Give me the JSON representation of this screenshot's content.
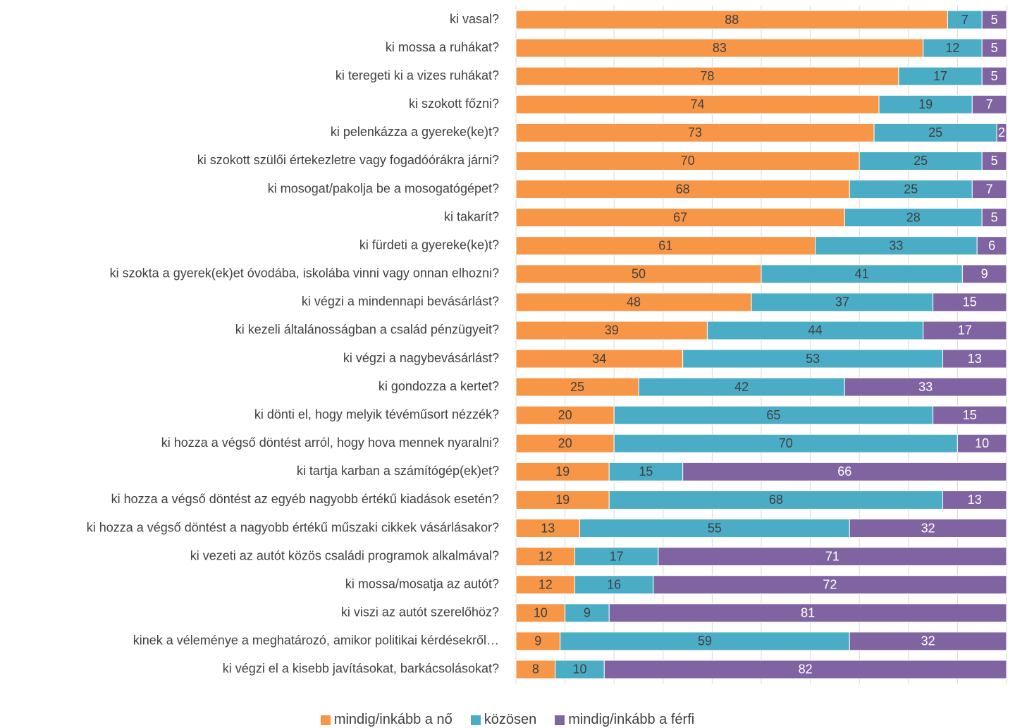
{
  "colors": {
    "nő": "#F79646",
    "közösen": "#4BACC6",
    "férfi": "#8064A2",
    "grid": "#D9D9D9",
    "text": "#404040"
  },
  "legend": [
    {
      "label": "mindig/inkább a nő",
      "color": "#F79646"
    },
    {
      "label": "közösen",
      "color": "#4BACC6"
    },
    {
      "label": "mindig/inkább a férfi",
      "color": "#8064A2"
    }
  ],
  "chart_data": {
    "type": "bar",
    "orientation": "horizontal",
    "stacked": "100%",
    "xlim": [
      0,
      100
    ],
    "grid": true,
    "legend_position": "bottom",
    "categories": [
      "ki vasal?",
      "ki mossa a ruhákat?",
      "ki teregeti ki a vizes ruhákat?",
      "ki szokott főzni?",
      "ki pelenkázza a gyereke(ke)t?",
      "ki szokott szülői értekezletre vagy fogadóórákra járni?",
      "ki mosogat/pakolja be a mosogatógépet?",
      "ki takarít?",
      "ki fürdeti a gyereke(ke)t?",
      "ki szokta a gyerek(ek)et óvodába, iskolába vinni vagy onnan elhozni?",
      "ki végzi a mindennapi bevásárlást?",
      "ki kezeli általánosságban a család pénzügyeit?",
      "ki végzi a nagybevásárlást?",
      "ki gondozza a kertet?",
      "ki dönti el, hogy melyik tévéműsort nézzék?",
      "ki hozza a végső döntést arról, hogy hova mennek nyaralni?",
      "ki tartja karban a számítógép(ek)et?",
      "ki hozza a végső döntést az egyéb nagyobb értékű kiadások esetén?",
      "ki hozza a végső döntést a nagyobb értékű műszaki cikkek vásárlásakor?",
      "ki vezeti az autót közös családi programok alkalmával?",
      "ki mossa/mosatja az autót?",
      "ki viszi az autót szerelőhöz?",
      "kinek a véleménye a meghatározó, amikor politikai kérdésekről…",
      "ki végzi el a kisebb javításokat, barkácsolásokat?"
    ],
    "series": [
      {
        "name": "mindig/inkább a nő",
        "values": [
          88,
          83,
          78,
          74,
          73,
          70,
          68,
          67,
          61,
          50,
          48,
          39,
          34,
          25,
          20,
          20,
          19,
          19,
          13,
          12,
          12,
          10,
          9,
          8
        ]
      },
      {
        "name": "közösen",
        "values": [
          7,
          12,
          17,
          19,
          25,
          25,
          25,
          28,
          33,
          41,
          37,
          44,
          53,
          42,
          65,
          70,
          15,
          68,
          55,
          17,
          16,
          9,
          59,
          10
        ]
      },
      {
        "name": "mindig/inkább a férfi",
        "values": [
          5,
          5,
          5,
          7,
          2,
          5,
          7,
          5,
          6,
          9,
          15,
          17,
          13,
          33,
          15,
          10,
          66,
          13,
          32,
          71,
          72,
          81,
          32,
          82
        ]
      }
    ]
  }
}
